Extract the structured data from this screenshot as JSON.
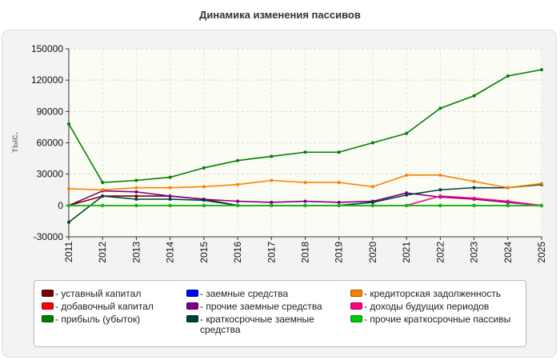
{
  "chart_data": {
    "type": "line",
    "title": "Динамика изменения пассивов",
    "ylabel": "тыс.",
    "xlabel": "",
    "ylim": [
      -30000,
      150000
    ],
    "yticks": [
      -30000,
      0,
      30000,
      60000,
      90000,
      120000,
      150000
    ],
    "ytick_labels": [
      "-30000",
      "0",
      "30000",
      "60000",
      "90000",
      "120000",
      "150000"
    ],
    "categories": [
      "2011",
      "2012",
      "2013",
      "2014",
      "2015",
      "2016",
      "2017",
      "2018",
      "2019",
      "2020",
      "2021",
      "2022",
      "2023",
      "2024",
      "2025"
    ],
    "grid": true,
    "legend_position": "bottom",
    "series": [
      {
        "name": "уставный капитал",
        "color": "#7a0000",
        "values": [
          0,
          9000,
          9000,
          9000,
          6000,
          0,
          0,
          0,
          0,
          0,
          0,
          0,
          0,
          0,
          0
        ]
      },
      {
        "name": "добавочный капитал",
        "color": "#ff0000",
        "values": [
          0,
          0,
          0,
          0,
          0,
          0,
          0,
          0,
          0,
          0,
          0,
          0,
          0,
          0,
          0
        ]
      },
      {
        "name": "прибыль (убыток)",
        "color": "#008000",
        "values": [
          78000,
          22000,
          24000,
          27000,
          36000,
          43000,
          47000,
          51000,
          51000,
          60000,
          69000,
          93000,
          105000,
          124000,
          130000
        ]
      },
      {
        "name": "заемные средства",
        "color": "#0000ff",
        "values": [
          0,
          0,
          0,
          0,
          0,
          0,
          0,
          0,
          0,
          0,
          0,
          0,
          0,
          0,
          0
        ]
      },
      {
        "name": "прочие заемные средства",
        "color": "#800080",
        "values": [
          0,
          14000,
          13000,
          9000,
          6000,
          4000,
          3000,
          4000,
          3000,
          4000,
          12000,
          8000,
          6000,
          3000,
          0
        ]
      },
      {
        "name": "краткосрочные заемные средства",
        "color": "#004040",
        "values": [
          -16000,
          9000,
          6000,
          6000,
          5000,
          0,
          0,
          0,
          0,
          3000,
          10000,
          15000,
          17000,
          17000,
          20000
        ]
      },
      {
        "name": "кредиторская задолженность",
        "color": "#ff8000",
        "values": [
          16000,
          15000,
          17000,
          17000,
          18000,
          20000,
          24000,
          22000,
          22000,
          18000,
          29000,
          29000,
          23000,
          17000,
          21000
        ]
      },
      {
        "name": "доходы будущих периодов",
        "color": "#ff0080",
        "values": [
          0,
          0,
          0,
          0,
          0,
          0,
          0,
          0,
          0,
          0,
          0,
          9000,
          7000,
          4000,
          0
        ]
      },
      {
        "name": "прочие краткосрочные пассивы",
        "color": "#00cc00",
        "values": [
          0,
          0,
          0,
          0,
          0,
          0,
          0,
          0,
          0,
          0,
          0,
          0,
          0,
          0,
          0
        ]
      }
    ]
  }
}
